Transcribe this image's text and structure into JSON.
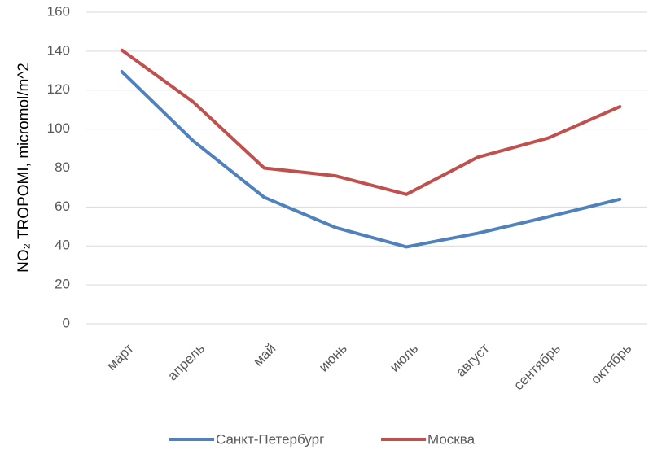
{
  "chart_data": {
    "type": "line",
    "y_label": "NO₂ TROPOMI, micromol/m^2",
    "categories": [
      "март",
      "апрель",
      "май",
      "июнь",
      "июль",
      "август",
      "сентябрь",
      "октябрь"
    ],
    "series": [
      {
        "name": "Санкт-Петербург",
        "color": "#4f81bd",
        "values": [
          129.5,
          94,
          65,
          49.5,
          39.5,
          46.5,
          55,
          64
        ]
      },
      {
        "name": "Москва",
        "color": "#c0504d",
        "values": [
          140.5,
          114,
          80,
          76,
          66.5,
          85.5,
          95.5,
          111.5
        ]
      }
    ],
    "ylim": [
      0,
      160
    ],
    "yticks": [
      0,
      20,
      40,
      60,
      80,
      100,
      120,
      140,
      160
    ],
    "grid": true,
    "legend": "bottom"
  }
}
